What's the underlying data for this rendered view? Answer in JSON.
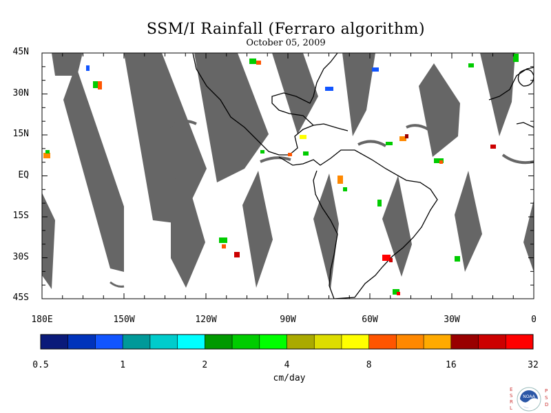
{
  "title": "SSM/I Rainfall (Ferraro algorithm)",
  "date": "October 05, 2009",
  "lat_labels": [
    "45N",
    "30N",
    "15N",
    "EQ",
    "15S",
    "30S",
    "45S"
  ],
  "lon_labels": [
    "180E",
    "150W",
    "120W",
    "90W",
    "60W",
    "30W",
    "0"
  ],
  "colorbar": {
    "colors": [
      "#0a1a7a",
      "#0033bb",
      "#1155ff",
      "#009999",
      "#00cccc",
      "#00ffff",
      "#009900",
      "#00cc00",
      "#00ff00",
      "#aaaa00",
      "#dddd00",
      "#ffff00",
      "#ff5500",
      "#ff8800",
      "#ffaa00",
      "#990000",
      "#cc0000",
      "#ff0000"
    ],
    "tick_labels": [
      "0.5",
      "1",
      "2",
      "4",
      "8",
      "16",
      "32"
    ],
    "unit": "cm/day"
  },
  "logo_text": {
    "left": [
      "E",
      "S",
      "R",
      "L"
    ],
    "right": [
      "P",
      "S",
      "D"
    ],
    "center": "NOAA"
  }
}
